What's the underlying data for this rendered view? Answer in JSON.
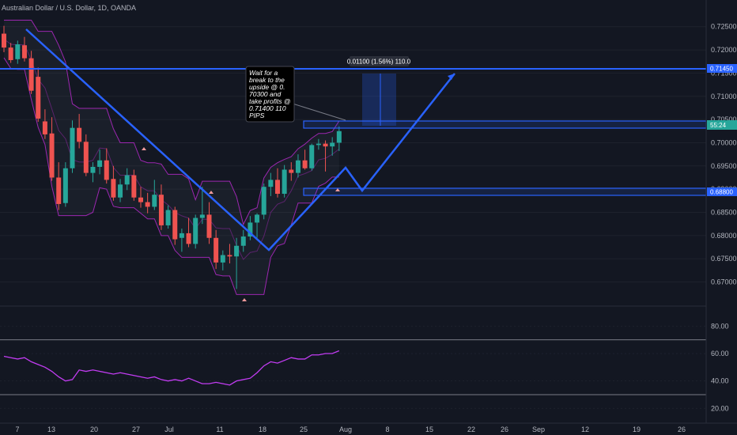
{
  "header": {
    "title": "Australian Dollar / U.S. Dollar, 1D, OANDA"
  },
  "colors": {
    "background": "#131722",
    "up": "#26a69a",
    "down": "#ef5350",
    "drawing": "#2962ff",
    "rsi": "#c23cf2",
    "channel": "#9c27b0",
    "grid": "#1e222d"
  },
  "price_axis": {
    "ticks": [
      "0.72500",
      "0.72000",
      "0.71500",
      "0.71000",
      "0.70500",
      "0.70000",
      "0.69500",
      "0.69000",
      "0.68500",
      "0.68000",
      "0.67500",
      "0.67000"
    ]
  },
  "rsi_axis": {
    "ticks": [
      "80.00",
      "60.00",
      "40.00",
      "20.00"
    ]
  },
  "time_axis": {
    "ticks": [
      "7",
      "13",
      "20",
      "27",
      "Jul",
      "11",
      "18",
      "25",
      "Aug",
      "8",
      "15",
      "22",
      "26",
      "Sep",
      "12",
      "19",
      "26"
    ]
  },
  "annotation": {
    "lines": [
      "Wait for a",
      "break to the",
      "upside @ 0.",
      "70300 and",
      "take profits @",
      "0.71400    110",
      "PIPS"
    ]
  },
  "measure": {
    "label": "0.01100 (1.56%) 110.0"
  },
  "price_labels": {
    "resistance": "0.71450",
    "current": "55:24",
    "support": "0.68800"
  },
  "chart_data": {
    "type": "candlestick",
    "title": "Australian Dollar / U.S. Dollar, 1D, OANDA",
    "y_range": [
      0.666,
      0.727
    ],
    "candles": [
      {
        "o": 0.7235,
        "h": 0.7252,
        "l": 0.7195,
        "c": 0.7205
      },
      {
        "o": 0.7205,
        "h": 0.7215,
        "l": 0.7172,
        "c": 0.7178
      },
      {
        "o": 0.718,
        "h": 0.722,
        "l": 0.717,
        "c": 0.7212
      },
      {
        "o": 0.721,
        "h": 0.7228,
        "l": 0.7175,
        "c": 0.7182
      },
      {
        "o": 0.7182,
        "h": 0.7198,
        "l": 0.7105,
        "c": 0.7112
      },
      {
        "o": 0.7142,
        "h": 0.7162,
        "l": 0.7045,
        "c": 0.7052
      },
      {
        "o": 0.7046,
        "h": 0.7072,
        "l": 0.7008,
        "c": 0.7018
      },
      {
        "o": 0.702,
        "h": 0.7055,
        "l": 0.6918,
        "c": 0.6925
      },
      {
        "o": 0.6925,
        "h": 0.6958,
        "l": 0.6855,
        "c": 0.6868
      },
      {
        "o": 0.687,
        "h": 0.6958,
        "l": 0.6862,
        "c": 0.6945
      },
      {
        "o": 0.6945,
        "h": 0.7048,
        "l": 0.6935,
        "c": 0.7032
      },
      {
        "o": 0.7032,
        "h": 0.7062,
        "l": 0.6988,
        "c": 0.7002
      },
      {
        "o": 0.7002,
        "h": 0.7018,
        "l": 0.6928,
        "c": 0.6935
      },
      {
        "o": 0.6935,
        "h": 0.6958,
        "l": 0.6915,
        "c": 0.6948
      },
      {
        "o": 0.6948,
        "h": 0.6985,
        "l": 0.6932,
        "c": 0.6962
      },
      {
        "o": 0.6962,
        "h": 0.6988,
        "l": 0.6912,
        "c": 0.692
      },
      {
        "o": 0.6922,
        "h": 0.695,
        "l": 0.6875,
        "c": 0.6882
      },
      {
        "o": 0.6882,
        "h": 0.6922,
        "l": 0.6872,
        "c": 0.691
      },
      {
        "o": 0.691,
        "h": 0.6945,
        "l": 0.6898,
        "c": 0.693
      },
      {
        "o": 0.693,
        "h": 0.6942,
        "l": 0.6875,
        "c": 0.6882
      },
      {
        "o": 0.6882,
        "h": 0.6905,
        "l": 0.686,
        "c": 0.6872
      },
      {
        "o": 0.6872,
        "h": 0.6892,
        "l": 0.6848,
        "c": 0.6862
      },
      {
        "o": 0.6862,
        "h": 0.692,
        "l": 0.6855,
        "c": 0.6888
      },
      {
        "o": 0.6888,
        "h": 0.691,
        "l": 0.6812,
        "c": 0.6822
      },
      {
        "o": 0.6822,
        "h": 0.6865,
        "l": 0.6815,
        "c": 0.6855
      },
      {
        "o": 0.6855,
        "h": 0.6862,
        "l": 0.678,
        "c": 0.6792
      },
      {
        "o": 0.6795,
        "h": 0.6815,
        "l": 0.6765,
        "c": 0.6805
      },
      {
        "o": 0.6805,
        "h": 0.6838,
        "l": 0.6775,
        "c": 0.6782
      },
      {
        "o": 0.6782,
        "h": 0.6845,
        "l": 0.6772,
        "c": 0.6838
      },
      {
        "o": 0.6838,
        "h": 0.6905,
        "l": 0.6825,
        "c": 0.6845
      },
      {
        "o": 0.6845,
        "h": 0.6872,
        "l": 0.6782,
        "c": 0.6795
      },
      {
        "o": 0.6795,
        "h": 0.6812,
        "l": 0.6728,
        "c": 0.6742
      },
      {
        "o": 0.6742,
        "h": 0.6768,
        "l": 0.6725,
        "c": 0.6758
      },
      {
        "o": 0.6758,
        "h": 0.6782,
        "l": 0.674,
        "c": 0.6755
      },
      {
        "o": 0.6755,
        "h": 0.6795,
        "l": 0.6685,
        "c": 0.6778
      },
      {
        "o": 0.6778,
        "h": 0.6812,
        "l": 0.6765,
        "c": 0.6798
      },
      {
        "o": 0.6798,
        "h": 0.6842,
        "l": 0.679,
        "c": 0.6828
      },
      {
        "o": 0.6828,
        "h": 0.6848,
        "l": 0.6795,
        "c": 0.6845
      },
      {
        "o": 0.6845,
        "h": 0.6912,
        "l": 0.6835,
        "c": 0.6905
      },
      {
        "o": 0.6905,
        "h": 0.6935,
        "l": 0.6885,
        "c": 0.692
      },
      {
        "o": 0.692,
        "h": 0.6945,
        "l": 0.6882,
        "c": 0.689
      },
      {
        "o": 0.689,
        "h": 0.6952,
        "l": 0.6882,
        "c": 0.6942
      },
      {
        "o": 0.6942,
        "h": 0.6958,
        "l": 0.6918,
        "c": 0.6935
      },
      {
        "o": 0.6935,
        "h": 0.6975,
        "l": 0.6925,
        "c": 0.6962
      },
      {
        "o": 0.6962,
        "h": 0.6985,
        "l": 0.6942,
        "c": 0.6945
      },
      {
        "o": 0.6945,
        "h": 0.6998,
        "l": 0.694,
        "c": 0.6995
      },
      {
        "o": 0.6995,
        "h": 0.7008,
        "l": 0.6985,
        "c": 0.6998
      },
      {
        "o": 0.6998,
        "h": 0.7005,
        "l": 0.6938,
        "c": 0.6992
      },
      {
        "o": 0.6992,
        "h": 0.7012,
        "l": 0.6972,
        "c": 0.7
      },
      {
        "o": 0.7,
        "h": 0.7035,
        "l": 0.6982,
        "c": 0.7025
      }
    ],
    "rsi_range": [
      15,
      90
    ],
    "rsi": [
      58,
      57,
      56,
      57,
      54,
      52,
      50,
      47,
      43,
      40,
      41,
      48,
      47,
      48,
      47,
      46,
      45,
      46,
      45,
      44,
      43,
      42,
      43,
      41,
      40,
      41,
      40,
      42,
      40,
      38,
      38,
      39,
      38,
      37,
      40,
      41,
      42,
      46,
      51,
      54,
      53,
      55,
      57,
      56,
      56,
      59,
      59,
      60,
      60,
      62
    ],
    "rsi_levels": [
      70,
      30
    ]
  }
}
